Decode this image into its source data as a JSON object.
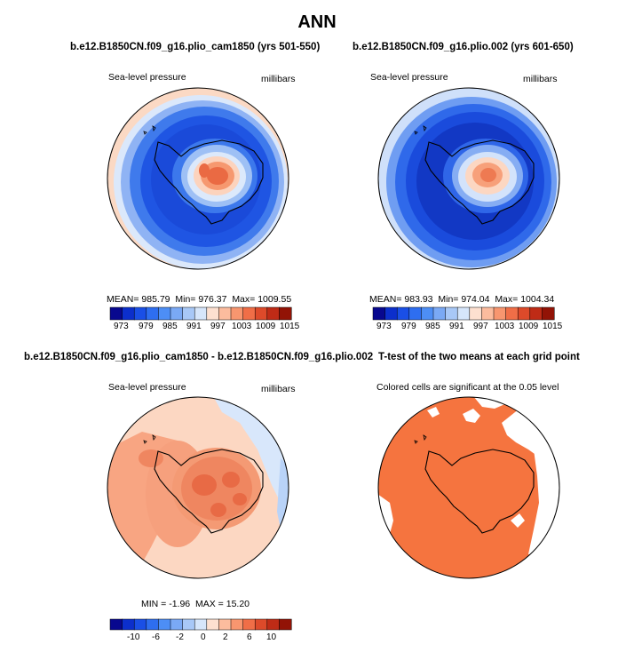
{
  "title": "ANN",
  "panels": [
    {
      "title": "b.e12.B1850CN.f09_g16.plio_cam1850 (yrs 501-550)",
      "variable": "Sea-level pressure",
      "units": "millibars",
      "stats": {
        "mean_label": "MEAN=",
        "mean": "985.79",
        "min_label": "Min=",
        "min": "976.37",
        "max_label": "Max=",
        "max": "1009.55"
      }
    },
    {
      "title": "b.e12.B1850CN.f09_g16.plio.002 (yrs 601-650)",
      "variable": "Sea-level pressure",
      "units": "millibars",
      "stats": {
        "mean_label": "MEAN=",
        "mean": "983.93",
        "min_label": "Min=",
        "min": "974.04",
        "max_label": "Max=",
        "max": "1004.34"
      }
    },
    {
      "title": "b.e12.B1850CN.f09_g16.plio_cam1850 - b.e12.B1850CN.f09_g16.plio.002",
      "variable": "Sea-level pressure",
      "units": "millibars",
      "stats": {
        "min_label": "MIN =",
        "min": "-1.96",
        "max_label": "MAX =",
        "max": "15.20"
      }
    },
    {
      "title": "T-test of the two means at each grid point",
      "subtitle": "Colored cells are significant at the 0.05 level"
    }
  ],
  "colorbar_abs": {
    "colors": [
      "#08088f",
      "#0c2fcc",
      "#1a4fe6",
      "#2e6ef0",
      "#4d8ef5",
      "#7aa9f5",
      "#a8c8f7",
      "#d6e6fb",
      "#fde0d0",
      "#fcbc9e",
      "#f8966f",
      "#f06e47",
      "#dd4a2a",
      "#bf2b16",
      "#921306"
    ],
    "tick_labels": [
      "973",
      "979",
      "985",
      "991",
      "997",
      "1003",
      "1009",
      "1015"
    ]
  },
  "colorbar_diff": {
    "colors": [
      "#08088f",
      "#0c2fcc",
      "#1a4fe6",
      "#2e6ef0",
      "#4d8ef5",
      "#7aa9f5",
      "#a8c8f7",
      "#d6e6fb",
      "#fde0d0",
      "#fcbc9e",
      "#f8966f",
      "#f06e47",
      "#dd4a2a",
      "#bf2b16",
      "#921306"
    ],
    "tick_labels": [
      "-10",
      "-6",
      "-2",
      "0",
      "2",
      "6",
      "10"
    ]
  },
  "significance_color": "#f5743f"
}
